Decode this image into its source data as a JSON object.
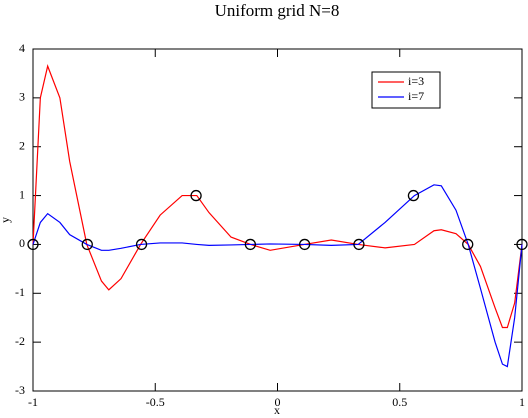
{
  "chart_data": {
    "type": "line",
    "title": "Uniform grid N=8",
    "x_label": "x",
    "y_label": "y",
    "x": [
      -1,
      -0.97,
      -0.94,
      -0.89,
      -0.85,
      -0.78,
      -0.72,
      -0.69,
      -0.64,
      -0.56,
      -0.48,
      -0.39,
      -0.33,
      -0.28,
      -0.19,
      -0.11,
      -0.03,
      0.11,
      0.22,
      0.33,
      0.44,
      0.56,
      0.64,
      0.67,
      0.73,
      0.78,
      0.83,
      0.89,
      0.92,
      0.94,
      0.97,
      1
    ],
    "series": [
      {
        "name": "i=3",
        "color": "#ff0000",
        "values": [
          0,
          3.0,
          3.65,
          3.0,
          1.7,
          0,
          -0.75,
          -0.93,
          -0.7,
          0,
          0.6,
          1.0,
          1.0,
          0.65,
          0.15,
          0,
          -0.12,
          0,
          0.09,
          0,
          -0.07,
          0,
          0.28,
          0.3,
          0.22,
          0,
          -0.45,
          -1.3,
          -1.7,
          -1.7,
          -1.2,
          0
        ]
      },
      {
        "name": "i=7",
        "color": "#0000ff",
        "values": [
          0,
          0.45,
          0.63,
          0.45,
          0.2,
          0,
          -0.12,
          -0.12,
          -0.08,
          0,
          0.03,
          0.03,
          0,
          -0.02,
          -0.01,
          0,
          0.01,
          0,
          -0.02,
          0,
          0.45,
          1.0,
          1.22,
          1.2,
          0.7,
          0,
          -0.9,
          -2.0,
          -2.45,
          -2.5,
          -1.5,
          0
        ]
      }
    ],
    "markers": {
      "x": [
        -1,
        -0.778,
        -0.556,
        -0.333,
        -0.111,
        0.111,
        0.333,
        0.556,
        0.778,
        1
      ],
      "values": [
        0,
        0,
        0,
        1,
        0,
        0,
        0,
        1,
        0,
        0
      ]
    },
    "xlim": [
      -1,
      1
    ],
    "ylim": [
      -3,
      4
    ],
    "xticks": [
      -1,
      -0.5,
      0,
      0.5,
      1
    ],
    "yticks": [
      -3,
      -2,
      -1,
      0,
      1,
      2,
      3,
      4
    ],
    "legend": "upper-right"
  }
}
